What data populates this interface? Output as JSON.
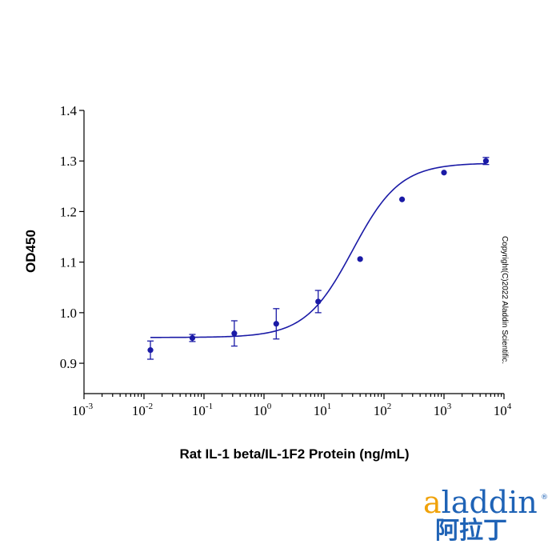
{
  "chart_data": {
    "type": "scatter",
    "xlabel": "Rat IL-1 beta/IL-1F2 Protein (ng/mL)",
    "ylabel": "OD450",
    "x_scale": "log10",
    "xlim": [
      0.001,
      10000
    ],
    "ylim": [
      0.84,
      1.4
    ],
    "x_ticks": [
      {
        "base": "10",
        "exp": "-3",
        "value": 0.001
      },
      {
        "base": "10",
        "exp": "-2",
        "value": 0.01
      },
      {
        "base": "10",
        "exp": "-1",
        "value": 0.1
      },
      {
        "base": "10",
        "exp": "0",
        "value": 1
      },
      {
        "base": "10",
        "exp": "1",
        "value": 10
      },
      {
        "base": "10",
        "exp": "2",
        "value": 100
      },
      {
        "base": "10",
        "exp": "3",
        "value": 1000
      },
      {
        "base": "10",
        "exp": "4",
        "value": 10000
      }
    ],
    "y_ticks": [
      {
        "label": "0.9",
        "value": 0.9
      },
      {
        "label": "1.0",
        "value": 1.0
      },
      {
        "label": "1.1",
        "value": 1.1
      },
      {
        "label": "1.2",
        "value": 1.2
      },
      {
        "label": "1.3",
        "value": 1.3
      },
      {
        "label": "1.4",
        "value": 1.4
      }
    ],
    "series": [
      {
        "color": "#1a1aa6",
        "x": [
          0.0128,
          0.064,
          0.32,
          1.6,
          8,
          40,
          200,
          1000,
          5000
        ],
        "y": [
          0.926,
          0.95,
          0.959,
          0.978,
          1.022,
          1.106,
          1.224,
          1.277,
          1.3
        ],
        "err": [
          0.018,
          0.007,
          0.025,
          0.03,
          0.022,
          0,
          0,
          0,
          0.007
        ]
      }
    ],
    "fit": {
      "type": "4PL",
      "bottom": 0.951,
      "top": 1.296,
      "ec50": 30,
      "hill": 1.1
    },
    "grid": false,
    "legend": "none"
  },
  "copyright": "Copyright(C)2022 Aladdin Scientific.",
  "logo": {
    "text_a": "a",
    "text_rest": "laddin",
    "cn": "阿拉丁",
    "reg": "®"
  }
}
